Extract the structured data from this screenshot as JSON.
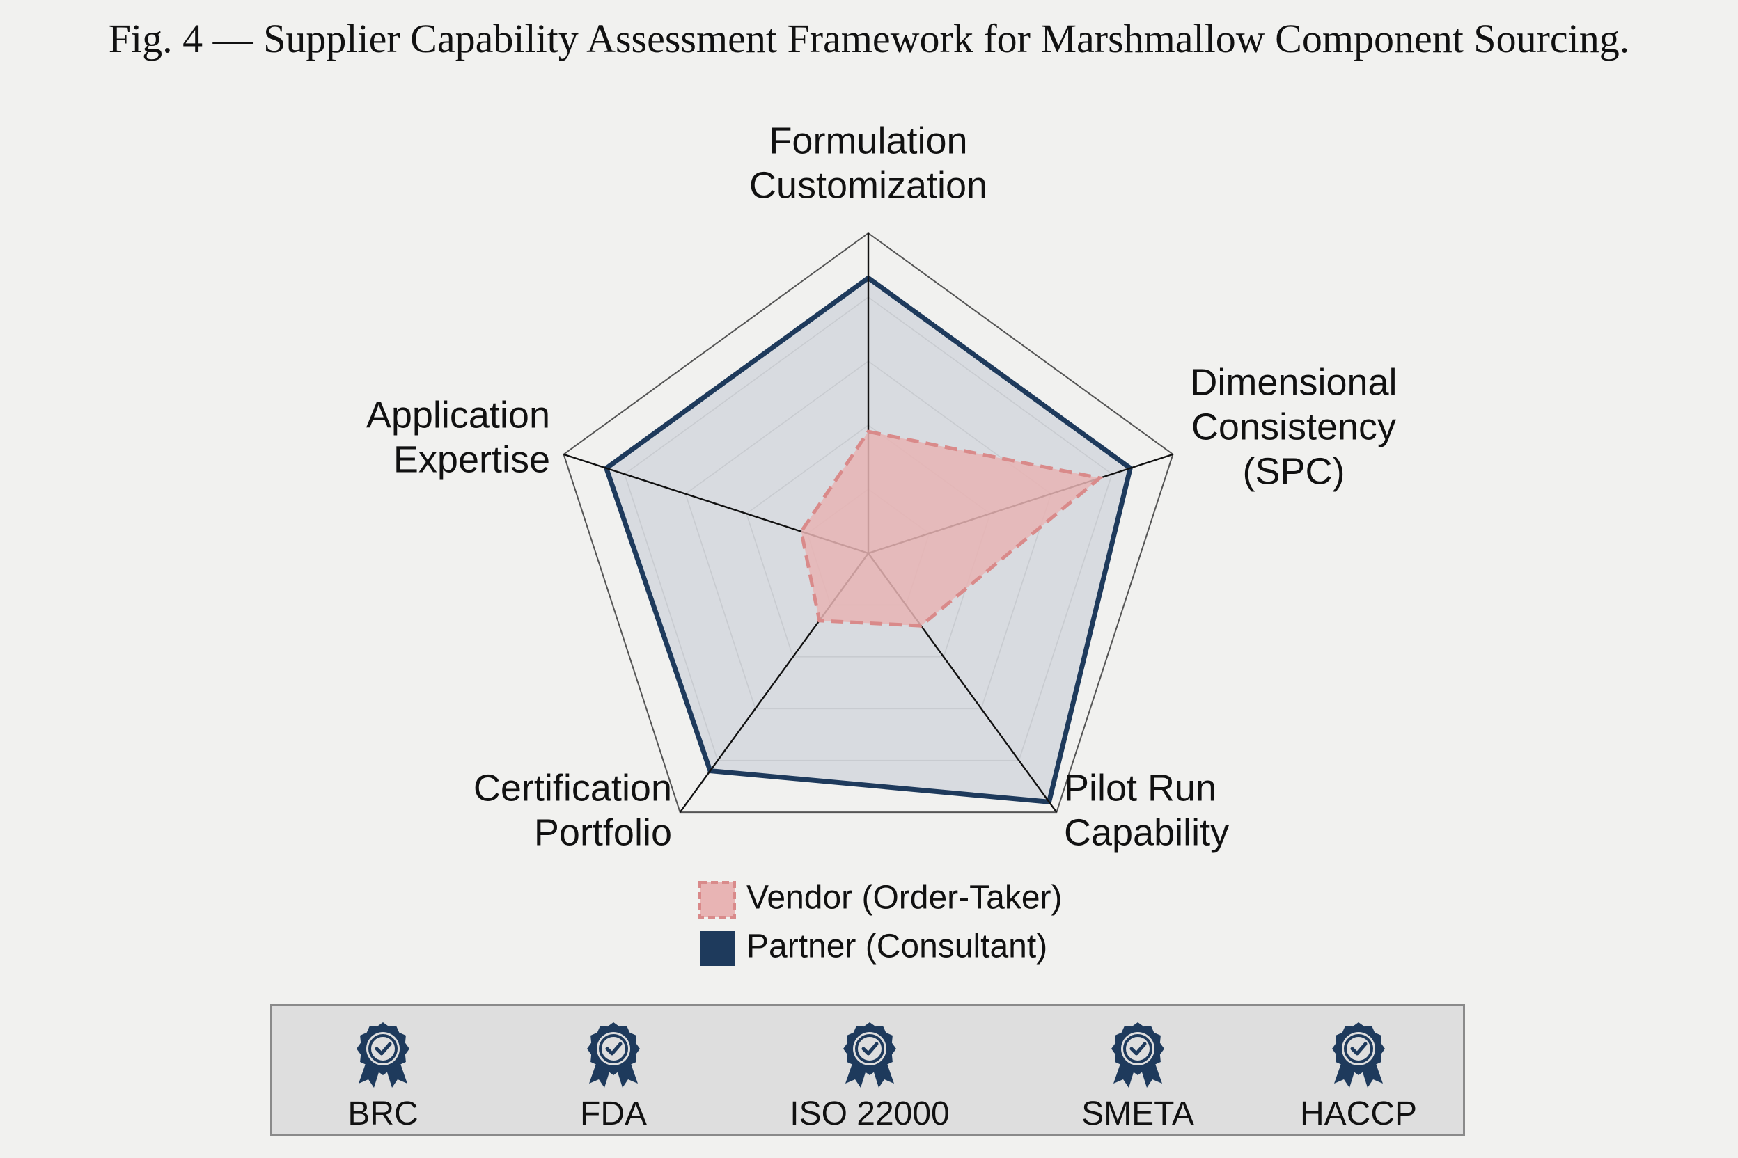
{
  "title": "Fig. 4 — Supplier Capability Assessment Framework for Marshmallow Component Sourcing.",
  "chart_data": {
    "type": "radar",
    "axes": [
      {
        "label_lines": [
          "Formulation",
          "Customization"
        ]
      },
      {
        "label_lines": [
          "Dimensional",
          "Consistency",
          "(SPC)"
        ]
      },
      {
        "label_lines": [
          "Pilot Run",
          "Capability"
        ]
      },
      {
        "label_lines": [
          "Certification",
          "Portfolio"
        ]
      },
      {
        "label_lines": [
          "Application",
          "Expertise"
        ]
      }
    ],
    "range": [
      0,
      5
    ],
    "rings": 5,
    "series": [
      {
        "name": "Vendor (Order-Taker)",
        "values": [
          1.9,
          3.8,
          1.4,
          1.3,
          1.1
        ],
        "color": "#d98a8a",
        "fill": "#e8b4b4",
        "style": "dashed"
      },
      {
        "name": "Partner (Consultant)",
        "values": [
          4.3,
          4.3,
          4.8,
          4.2,
          4.3
        ],
        "color": "#1e3a5c",
        "fill": "#d5d8de",
        "style": "solid"
      }
    ],
    "legend_position": "bottom"
  },
  "certifications": [
    {
      "label": "BRC",
      "icon": "award-ribbon-icon"
    },
    {
      "label": "FDA",
      "icon": "award-ribbon-icon"
    },
    {
      "label": "ISO 22000",
      "icon": "award-ribbon-icon"
    },
    {
      "label": "SMETA",
      "icon": "award-ribbon-icon"
    },
    {
      "label": "HACCP",
      "icon": "award-ribbon-icon"
    }
  ],
  "colors": {
    "accent": "#1e3a5c",
    "vendor": "#d98a8a",
    "background": "#f1f1ef"
  }
}
